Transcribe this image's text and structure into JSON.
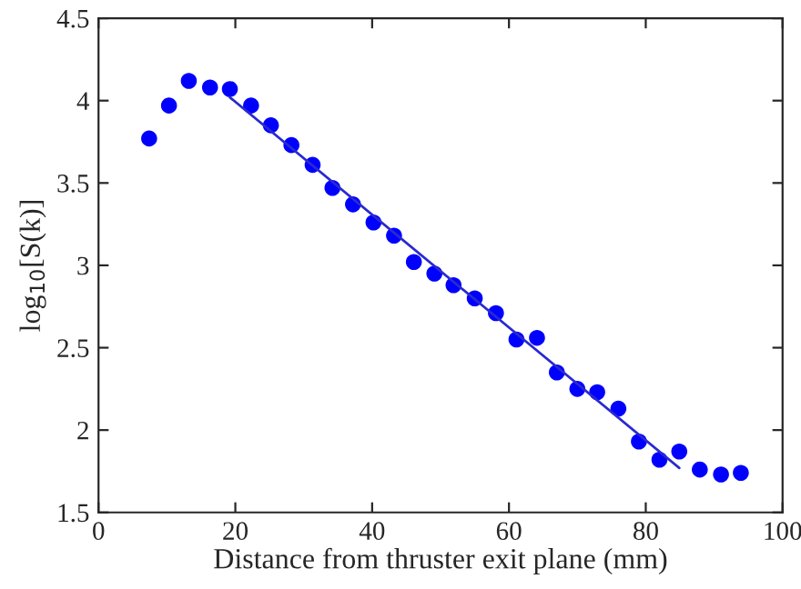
{
  "chart_data": {
    "type": "scatter",
    "xlabel": "Distance from thruster exit plane (mm)",
    "ylabel": "log$_{10}$[S(k)]",
    "xlim": [
      0,
      100
    ],
    "xticks": [
      0,
      20,
      40,
      60,
      80,
      100
    ],
    "ylim": [
      1.5,
      4.5
    ],
    "yticks": [
      1.5,
      2,
      2.5,
      3,
      3.5,
      4,
      4.5
    ],
    "grid": false,
    "series": [
      {
        "marker": "circle",
        "color": "#0000ff",
        "x": [
          7.4,
          10.3,
          13.2,
          16.3,
          19.2,
          22.3,
          25.2,
          28.2,
          31.3,
          34.2,
          37.2,
          40.2,
          43.2,
          46.1,
          49.1,
          51.9,
          55.0,
          58.1,
          61.1,
          64.1,
          67.0,
          70.0,
          72.9,
          76.0,
          79.0,
          82.0,
          84.9,
          87.9,
          91.0,
          93.9
        ],
        "values": [
          3.77,
          3.97,
          4.12,
          4.08,
          4.07,
          3.97,
          3.85,
          3.73,
          3.61,
          3.47,
          3.37,
          3.26,
          3.18,
          3.02,
          2.95,
          2.88,
          2.8,
          2.71,
          2.55,
          2.56,
          2.35,
          2.25,
          2.23,
          2.13,
          1.93,
          1.82,
          1.87,
          1.76,
          1.73,
          1.74
        ]
      },
      {
        "type": "line",
        "color": "#2a2ad0",
        "marker": "none",
        "line_style": "solid",
        "x": [
          19.2,
          84.9
        ],
        "values": [
          4.02,
          1.77
        ]
      }
    ]
  }
}
